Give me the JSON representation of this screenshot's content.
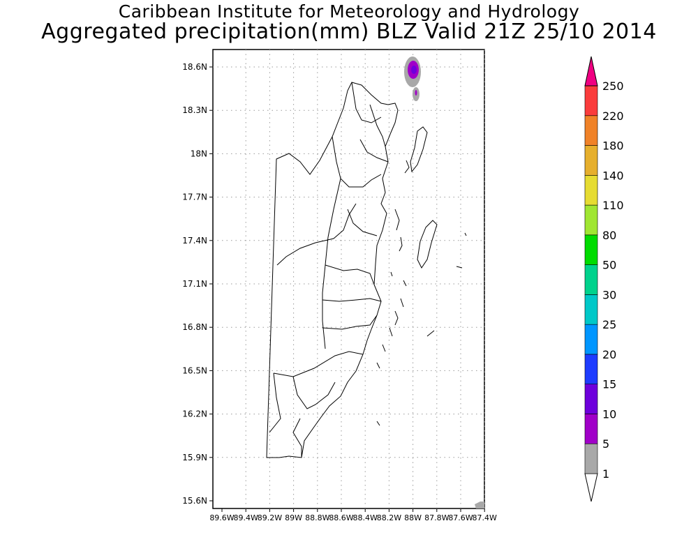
{
  "header": {
    "title": "Caribbean Institute for Meteorology and Hydrology",
    "subtitle": "Aggregated precipitation(mm) BLZ Valid 21Z 25/10 2014"
  },
  "map": {
    "region": "Belize",
    "lat_labels": [
      "18.6N",
      "18.3N",
      "18N",
      "17.7N",
      "17.4N",
      "17.1N",
      "16.8N",
      "16.5N",
      "16.2N",
      "15.9N",
      "15.6N"
    ],
    "lon_labels": [
      "89.6W",
      "89.4W",
      "89.2W",
      "89W",
      "88.8W",
      "88.6W",
      "88.4W",
      "88.2W",
      "88W",
      "87.8W",
      "87.6W",
      "87.4W"
    ],
    "grid": true
  },
  "legend": {
    "levels": [
      "1",
      "5",
      "10",
      "15",
      "20",
      "25",
      "30",
      "50",
      "80",
      "110",
      "140",
      "180",
      "220",
      "250"
    ],
    "colors": [
      "#ffffff",
      "#a8a8a8",
      "#a000c8",
      "#6e00dc",
      "#1e3cff",
      "#0096ff",
      "#00c8c8",
      "#00d28c",
      "#00dc00",
      "#a0e632",
      "#e6dc32",
      "#e6af2d",
      "#f08228",
      "#fa3c3c",
      "#f00082"
    ]
  }
}
